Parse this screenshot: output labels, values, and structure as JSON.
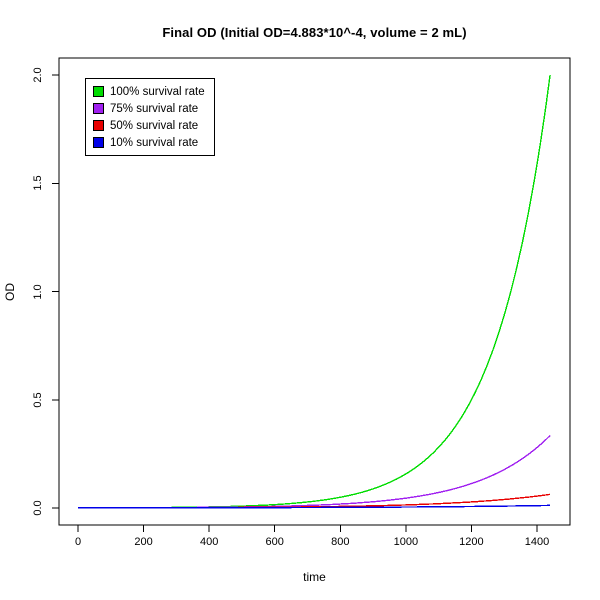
{
  "title": "Final OD (Initial OD=4.883*10^-4, volume = 2 mL)",
  "background_color": "#ffffff",
  "axis_color": "#000000",
  "chart_data": {
    "type": "line",
    "title": "Final OD (Initial OD=4.883*10^-4, volume = 2 mL)",
    "xlabel": "time",
    "ylabel": "OD",
    "xlim": [
      0,
      1440
    ],
    "ylim": [
      0.0,
      2.0
    ],
    "grid": false,
    "legend_position": "top-left",
    "x_ticks": [
      0,
      200,
      400,
      600,
      800,
      1000,
      1200,
      1400
    ],
    "x_tick_labels": [
      "0",
      "200",
      "400",
      "600",
      "800",
      "1000",
      "1200",
      "1400"
    ],
    "y_ticks": [
      0.0,
      0.5,
      1.0,
      1.5,
      2.0
    ],
    "y_tick_labels": [
      "0.0",
      "0.5",
      "1.0",
      "1.5",
      "2.0"
    ],
    "initial_od": 0.0004883,
    "x": [
      0,
      120,
      240,
      360,
      480,
      600,
      720,
      840,
      960,
      1080,
      1200,
      1320,
      1440
    ],
    "series": [
      {
        "name": "100% survival rate",
        "color": "#00DC00",
        "final_od": 2.0,
        "values": [
          0.000488,
          0.000977,
          0.001953,
          0.003906,
          0.007813,
          0.015625,
          0.03125,
          0.0625,
          0.125,
          0.25,
          0.5,
          1.0,
          2.0
        ]
      },
      {
        "name": "75% survival rate",
        "color": "#A020F0",
        "final_od": 0.335,
        "values": [
          0.000488,
          0.000841,
          0.001449,
          0.002498,
          0.004304,
          0.007417,
          0.012782,
          0.022027,
          0.03796,
          0.065416,
          0.112733,
          0.194276,
          0.335
        ]
      },
      {
        "name": "50% survival rate",
        "color": "#E80000",
        "final_od": 0.063,
        "values": [
          0.000488,
          0.000732,
          0.001097,
          0.001645,
          0.002467,
          0.003698,
          0.005545,
          0.008314,
          0.012465,
          0.018689,
          0.028021,
          0.042012,
          0.063
        ]
      },
      {
        "name": "10% survival rate",
        "color": "#0000E8",
        "final_od": 0.012,
        "values": [
          0.000488,
          0.000637,
          0.000832,
          0.001087,
          0.001419,
          0.001853,
          0.00242,
          0.00316,
          0.004126,
          0.005388,
          0.007036,
          0.009188,
          0.012
        ]
      }
    ]
  }
}
